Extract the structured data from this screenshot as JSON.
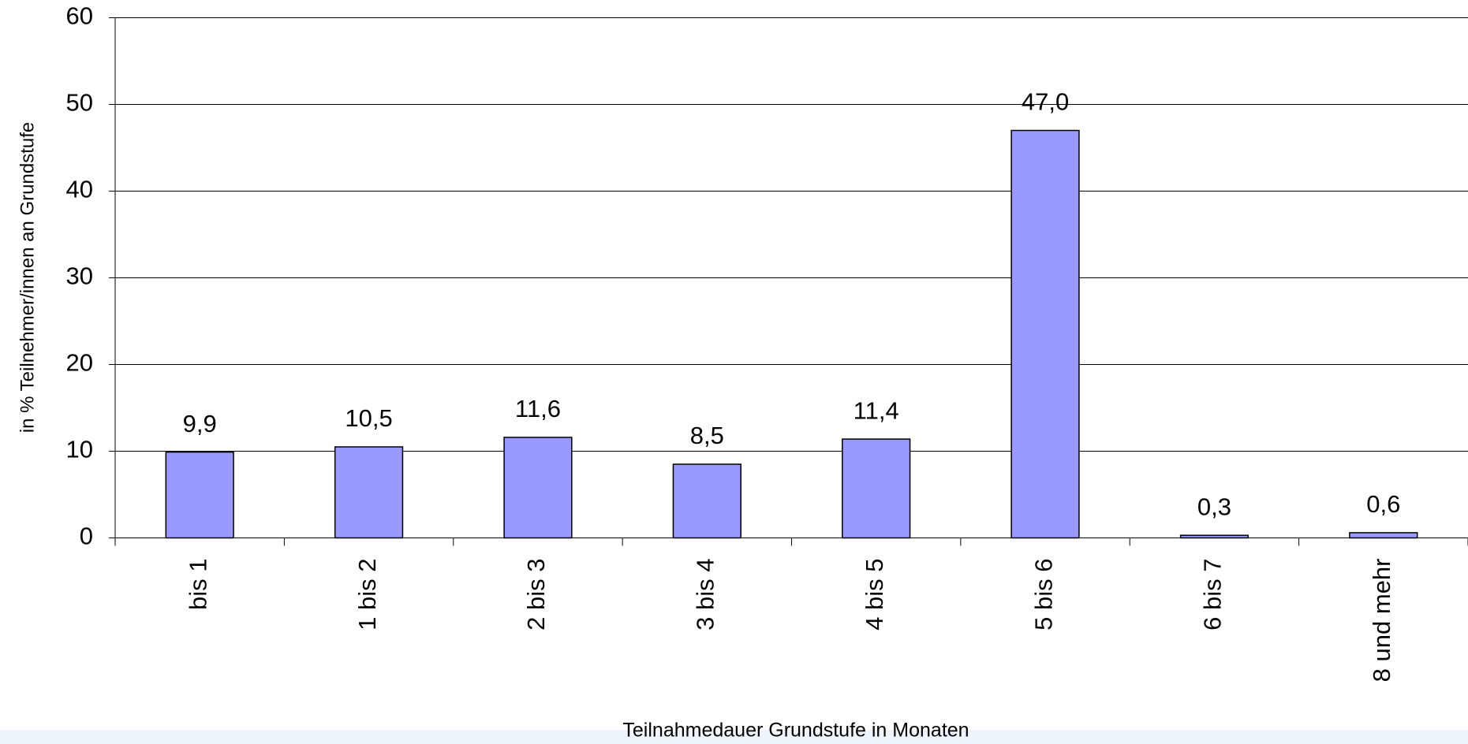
{
  "chart_data": {
    "type": "bar",
    "categories": [
      "bis 1",
      "1 bis 2",
      "2 bis 3",
      "3 bis 4",
      "4 bis 5",
      "5 bis 6",
      "6 bis 7",
      "8  und mehr"
    ],
    "values": [
      9.9,
      10.5,
      11.6,
      8.5,
      11.4,
      47.0,
      0.3,
      0.6
    ],
    "value_labels": [
      "9,9",
      "10,5",
      "11,6",
      "8,5",
      "11,4",
      "47,0",
      "0,3",
      "0,6"
    ],
    "color": "#9999ff",
    "ylim": [
      0,
      60
    ],
    "yticks": [
      0,
      10,
      20,
      30,
      40,
      50,
      60
    ],
    "grid": true,
    "x_label": "Teilnahmedauer Grundstufe in Monaten",
    "y_label": "in % Teilnehmer/innen an Grundstufe"
  }
}
